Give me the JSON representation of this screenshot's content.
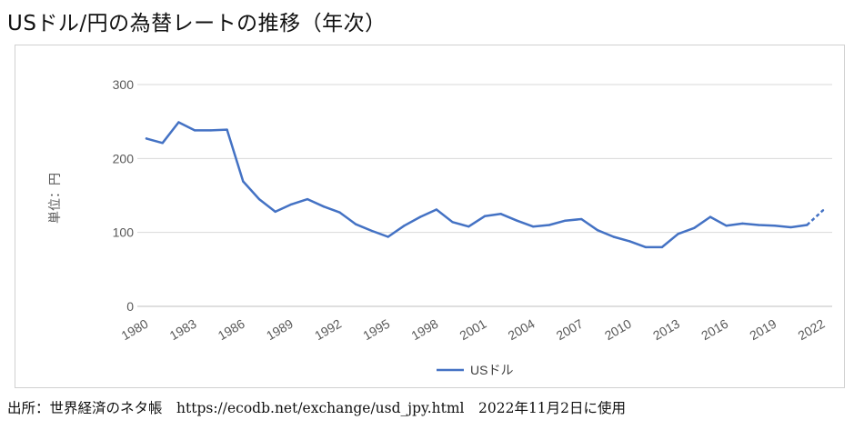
{
  "page": {
    "title": "USドル/円の為替レートの推移（年次）",
    "source": "出所：世界経済のネタ帳　https://ecodb.net/exchange/usd_jpy.html　2022年11月2日に使用"
  },
  "chart_data": {
    "type": "line",
    "title": "USドル/円の為替レートの推移（年次）",
    "xlabel": "",
    "ylabel": "単位：円",
    "ylim": [
      0,
      300
    ],
    "yticks": [
      0,
      100,
      200,
      300
    ],
    "xlim": [
      1980,
      2022
    ],
    "xticks": [
      1980,
      1983,
      1986,
      1989,
      1992,
      1995,
      1998,
      2001,
      2004,
      2007,
      2010,
      2013,
      2016,
      2019,
      2022
    ],
    "grid": true,
    "legend_position": "bottom",
    "colors": {
      "line": "#4472C4",
      "grid": "#d9d9d9",
      "axis": "#bfbfbf",
      "text": "#595959"
    },
    "series": [
      {
        "name": "USドル",
        "dashed_last_segment": true,
        "x": [
          1980,
          1981,
          1982,
          1983,
          1984,
          1985,
          1986,
          1987,
          1988,
          1989,
          1990,
          1991,
          1992,
          1993,
          1994,
          1995,
          1996,
          1997,
          1998,
          1999,
          2000,
          2001,
          2002,
          2003,
          2004,
          2005,
          2006,
          2007,
          2008,
          2009,
          2010,
          2011,
          2012,
          2013,
          2014,
          2015,
          2016,
          2017,
          2018,
          2019,
          2020,
          2021,
          2022
        ],
        "values": [
          227,
          221,
          249,
          238,
          238,
          239,
          169,
          145,
          128,
          138,
          145,
          135,
          127,
          111,
          102,
          94,
          109,
          121,
          131,
          114,
          108,
          122,
          125,
          116,
          108,
          110,
          116,
          118,
          103,
          94,
          88,
          80,
          80,
          98,
          106,
          121,
          109,
          112,
          110,
          109,
          107,
          110,
          130
        ]
      }
    ]
  }
}
